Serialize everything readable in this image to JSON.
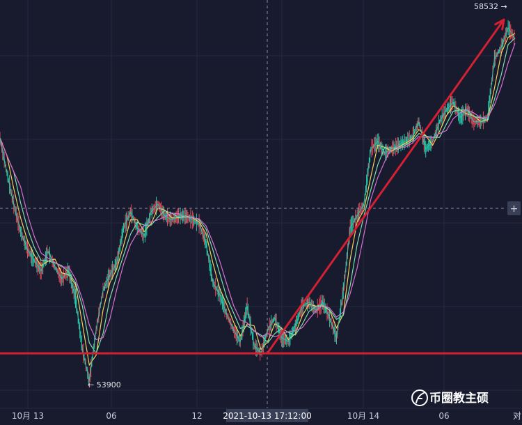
{
  "chart_data": {
    "type": "line",
    "title": "",
    "xlabel": "",
    "ylabel": "",
    "x_ticks": [
      "10月 13",
      "06",
      "12",
      "10月 14",
      "06"
    ],
    "crosshair_time": "2021-10-13 17:12:00",
    "low_label": "← 53900",
    "high_label": "58532 →",
    "corner_label": "对",
    "low_value": 53900,
    "high_value": 58532,
    "ylim": [
      53600,
      58800
    ],
    "support_level": 54300,
    "trendline": {
      "from": {
        "time": "2021-10-13 17:12:00",
        "value": 54300
      },
      "to": {
        "time": "2021-10-15 00:30:00",
        "value": 58550
      }
    },
    "price_series": [
      {
        "t": 0,
        "v": 57040
      },
      {
        "t": 1,
        "v": 56600
      },
      {
        "t": 2,
        "v": 56200
      },
      {
        "t": 3,
        "v": 55850
      },
      {
        "t": 4,
        "v": 55620
      },
      {
        "t": 5,
        "v": 55480
      },
      {
        "t": 6,
        "v": 55350
      },
      {
        "t": 7,
        "v": 55600
      },
      {
        "t": 8,
        "v": 55400
      },
      {
        "t": 9,
        "v": 55250
      },
      {
        "t": 10,
        "v": 55350
      },
      {
        "t": 11,
        "v": 55000
      },
      {
        "t": 12,
        "v": 54350
      },
      {
        "t": 13,
        "v": 53950
      },
      {
        "t": 14,
        "v": 54600
      },
      {
        "t": 15,
        "v": 55100
      },
      {
        "t": 16,
        "v": 55300
      },
      {
        "t": 17,
        "v": 55450
      },
      {
        "t": 18,
        "v": 55900
      },
      {
        "t": 19,
        "v": 56100
      },
      {
        "t": 20,
        "v": 55900
      },
      {
        "t": 21,
        "v": 55800
      },
      {
        "t": 22,
        "v": 56100
      },
      {
        "t": 23,
        "v": 56200
      },
      {
        "t": 24,
        "v": 56050
      },
      {
        "t": 25,
        "v": 56000
      },
      {
        "t": 26,
        "v": 56050
      },
      {
        "t": 27,
        "v": 56050
      },
      {
        "t": 28,
        "v": 56000
      },
      {
        "t": 29,
        "v": 55950
      },
      {
        "t": 30,
        "v": 55700
      },
      {
        "t": 31,
        "v": 55200
      },
      {
        "t": 32,
        "v": 55050
      },
      {
        "t": 33,
        "v": 54800
      },
      {
        "t": 34,
        "v": 54600
      },
      {
        "t": 35,
        "v": 54450
      },
      {
        "t": 36,
        "v": 54900
      },
      {
        "t": 37,
        "v": 54400
      },
      {
        "t": 38,
        "v": 54300
      },
      {
        "t": 39,
        "v": 54600
      },
      {
        "t": 40,
        "v": 54750
      },
      {
        "t": 41,
        "v": 54500
      },
      {
        "t": 42,
        "v": 54450
      },
      {
        "t": 43,
        "v": 54650
      },
      {
        "t": 44,
        "v": 54900
      },
      {
        "t": 45,
        "v": 54950
      },
      {
        "t": 46,
        "v": 54850
      },
      {
        "t": 47,
        "v": 54950
      },
      {
        "t": 48,
        "v": 54750
      },
      {
        "t": 49,
        "v": 54500
      },
      {
        "t": 50,
        "v": 55100
      },
      {
        "t": 51,
        "v": 55900
      },
      {
        "t": 52,
        "v": 56050
      },
      {
        "t": 53,
        "v": 56200
      },
      {
        "t": 54,
        "v": 56900
      },
      {
        "t": 55,
        "v": 57000
      },
      {
        "t": 56,
        "v": 56850
      },
      {
        "t": 57,
        "v": 56900
      },
      {
        "t": 58,
        "v": 56950
      },
      {
        "t": 59,
        "v": 57000
      },
      {
        "t": 60,
        "v": 57050
      },
      {
        "t": 61,
        "v": 57250
      },
      {
        "t": 62,
        "v": 56900
      },
      {
        "t": 63,
        "v": 57000
      },
      {
        "t": 64,
        "v": 57250
      },
      {
        "t": 65,
        "v": 57400
      },
      {
        "t": 66,
        "v": 57500
      },
      {
        "t": 67,
        "v": 57300
      },
      {
        "t": 68,
        "v": 57400
      },
      {
        "t": 69,
        "v": 57250
      },
      {
        "t": 70,
        "v": 57250
      },
      {
        "t": 71,
        "v": 57300
      },
      {
        "t": 72,
        "v": 58050
      },
      {
        "t": 73,
        "v": 58200
      },
      {
        "t": 74,
        "v": 58450
      },
      {
        "t": 75,
        "v": 58300
      }
    ]
  },
  "colors": {
    "background": "#181a2e",
    "price_up": "#26c6a8",
    "price_down": "#e04a5a",
    "ma_fast": "#f2d15c",
    "ma_mid": "#7ee0b0",
    "ma_slow": "#d86fd0",
    "annotation": "#d42033",
    "grid": "#262a40",
    "crosshair": "#8a8fa8",
    "crosshair_label_bg": "#3a3f58"
  },
  "watermark": "币圈教主硕",
  "watermark_icon": "feather-logo-icon",
  "crosshair_price_action": "+"
}
